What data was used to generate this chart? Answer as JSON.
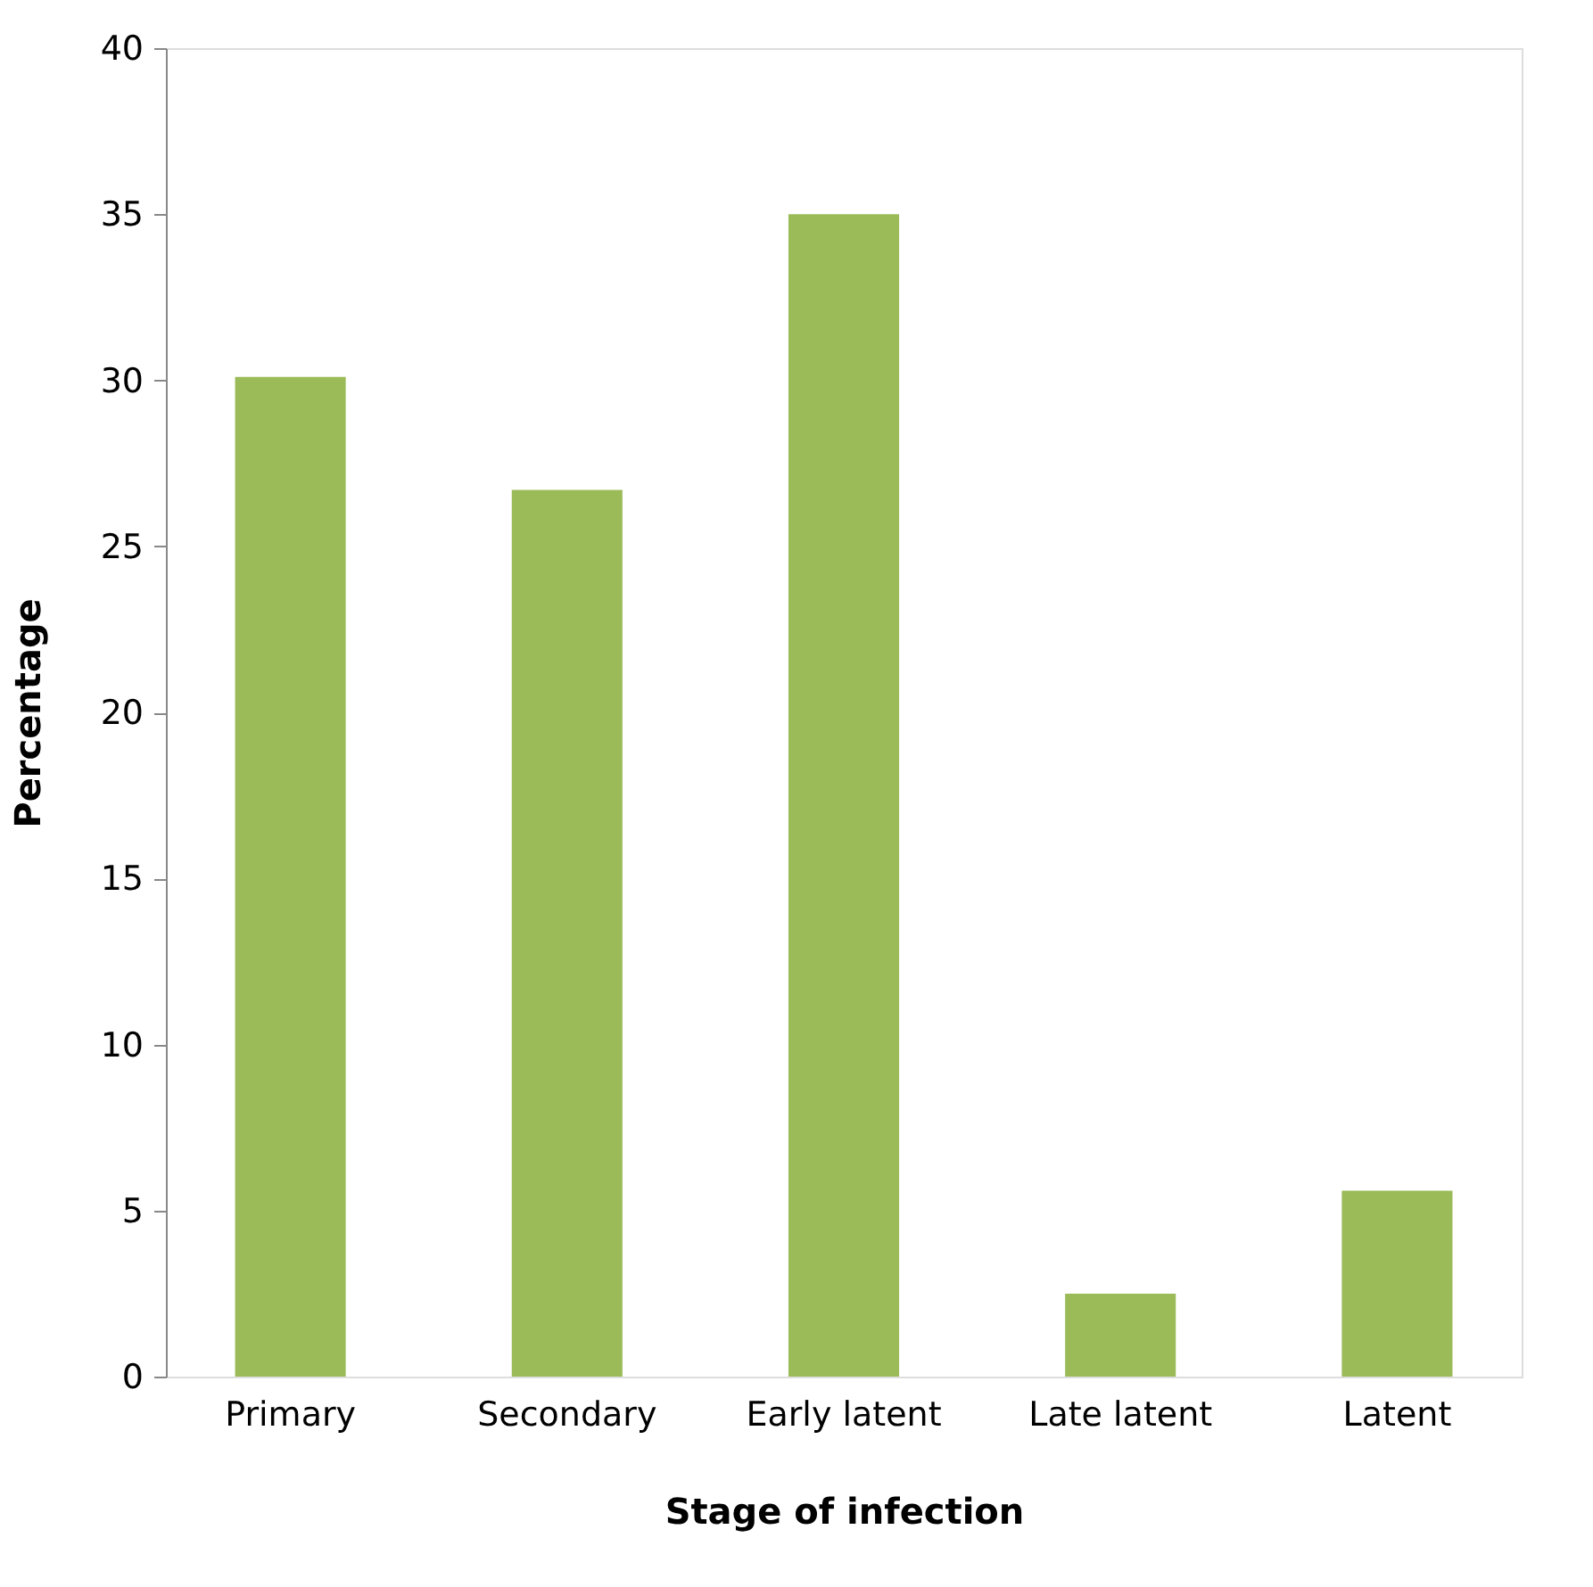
{
  "chart_data": {
    "type": "bar",
    "xlabel": "Stage of infection",
    "ylabel": "Percentage",
    "categories": [
      "Primary",
      "Secondary",
      "Early latent",
      "Late latent",
      "Latent"
    ],
    "values": [
      30.1,
      26.7,
      35.0,
      2.5,
      5.6
    ],
    "color": "#9bbb59",
    "ylim": [
      0,
      40
    ],
    "yticks": [
      0,
      5,
      10,
      15,
      20,
      25,
      30,
      35,
      40
    ],
    "grid": false
  }
}
